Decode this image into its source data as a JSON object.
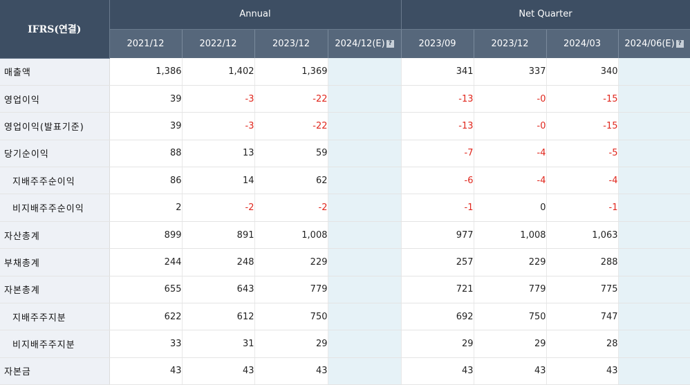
{
  "header": {
    "corner_label": "IFRS(연결)",
    "annual_label": "Annual",
    "quarter_label": "Net Quarter",
    "help_glyph": "?",
    "columns": [
      "2021/12",
      "2022/12",
      "2023/12",
      "2024/12(E)",
      "2023/09",
      "2023/12",
      "2024/03",
      "2024/06(E)"
    ]
  },
  "rows": [
    {
      "label": "매출액",
      "indent": false,
      "values": [
        "1,386",
        "1,402",
        "1,369",
        "",
        "341",
        "337",
        "340",
        ""
      ]
    },
    {
      "label": "영업이익",
      "indent": false,
      "values": [
        "39",
        "-3",
        "-22",
        "",
        "-13",
        "-0",
        "-15",
        ""
      ]
    },
    {
      "label": "영업이익(발표기준)",
      "indent": false,
      "values": [
        "39",
        "-3",
        "-22",
        "",
        "-13",
        "-0",
        "-15",
        ""
      ]
    },
    {
      "label": "당기순이익",
      "indent": false,
      "values": [
        "88",
        "13",
        "59",
        "",
        "-7",
        "-4",
        "-5",
        ""
      ]
    },
    {
      "label": "지배주주순이익",
      "indent": true,
      "values": [
        "86",
        "14",
        "62",
        "",
        "-6",
        "-4",
        "-4",
        ""
      ]
    },
    {
      "label": "비지배주주순이익",
      "indent": true,
      "values": [
        "2",
        "-2",
        "-2",
        "",
        "-1",
        "0",
        "-1",
        ""
      ]
    },
    {
      "label": "자산총계",
      "indent": false,
      "values": [
        "899",
        "891",
        "1,008",
        "",
        "977",
        "1,008",
        "1,063",
        ""
      ]
    },
    {
      "label": "부채총계",
      "indent": false,
      "values": [
        "244",
        "248",
        "229",
        "",
        "257",
        "229",
        "288",
        ""
      ]
    },
    {
      "label": "자본총계",
      "indent": false,
      "values": [
        "655",
        "643",
        "779",
        "",
        "721",
        "779",
        "775",
        ""
      ]
    },
    {
      "label": "지배주주지분",
      "indent": true,
      "values": [
        "622",
        "612",
        "750",
        "",
        "692",
        "750",
        "747",
        ""
      ]
    },
    {
      "label": "비지배주주지분",
      "indent": true,
      "values": [
        "33",
        "31",
        "29",
        "",
        "29",
        "29",
        "28",
        ""
      ]
    },
    {
      "label": "자본금",
      "indent": false,
      "values": [
        "43",
        "43",
        "43",
        "",
        "43",
        "43",
        "43",
        ""
      ]
    }
  ],
  "colors": {
    "header_dark": "#3d4e63",
    "header_mid": "#56677b",
    "label_bg": "#eef1f6",
    "estimate_bg": "#e6f2f7",
    "negative": "#e0261c"
  }
}
